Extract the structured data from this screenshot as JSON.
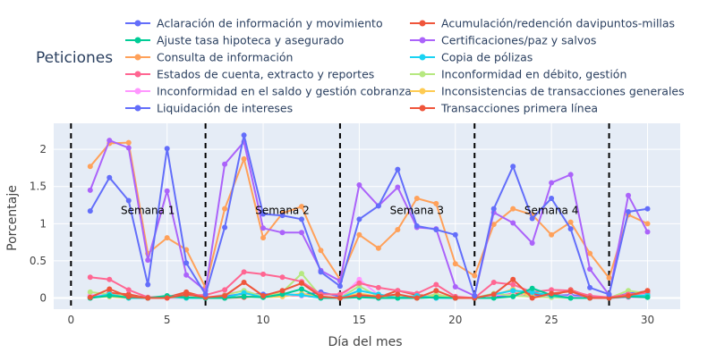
{
  "chart_data": {
    "type": "line",
    "title": "Peticiones",
    "xlabel": "Día del mes",
    "ylabel": "Porcentaje",
    "xlim": [
      -0.9,
      31.7
    ],
    "ylim": [
      -0.15,
      2.35
    ],
    "xticks": [
      0,
      5,
      10,
      15,
      20,
      25,
      30
    ],
    "yticks": [
      0,
      0.5,
      1,
      1.5,
      2
    ],
    "xtick_labels": [
      "0",
      "5",
      "10",
      "15",
      "20",
      "25",
      "30"
    ],
    "ytick_labels": [
      "0",
      "0.5",
      "1",
      "1.5",
      "2"
    ],
    "grid": true,
    "legend_position": "top",
    "week_lines": [
      0,
      7,
      14,
      21,
      28
    ],
    "annotations": [
      {
        "text": "Semana 1",
        "x": 4,
        "y": 1.18
      },
      {
        "text": "Semana 2",
        "x": 11,
        "y": 1.18
      },
      {
        "text": "Semana 3",
        "x": 18,
        "y": 1.18
      },
      {
        "text": "Semana 4",
        "x": 25,
        "y": 1.18
      }
    ],
    "x": [
      1,
      2,
      3,
      4,
      5,
      6,
      7,
      8,
      9,
      10,
      11,
      12,
      13,
      14,
      15,
      16,
      17,
      18,
      19,
      20,
      21,
      22,
      23,
      24,
      25,
      26,
      27,
      28,
      29,
      30
    ],
    "series": [
      {
        "name": "Aclaración de información y movimiento",
        "color": "#636efa",
        "values": [
          1.17,
          1.62,
          1.31,
          0.18,
          2.01,
          0.47,
          0.05,
          0.95,
          2.19,
          1.13,
          1.11,
          1.06,
          0.35,
          0.16,
          1.06,
          1.24,
          1.73,
          0.97,
          0.92,
          0.85,
          0.03,
          1.2,
          1.77,
          1.07,
          1.34,
          0.93,
          0.14,
          0.05,
          1.16,
          1.2
        ]
      },
      {
        "name": "Acumulación/redención davipuntos-millas",
        "color": "#EF553B",
        "values": [
          0.01,
          0.12,
          0.02,
          0,
          0,
          0.05,
          0.01,
          0.03,
          0.21,
          0.03,
          0.1,
          0.2,
          0.02,
          0,
          0.04,
          0.02,
          0.05,
          0,
          0.1,
          0,
          0,
          0.05,
          0.25,
          0,
          0.06,
          0.09,
          0,
          0,
          0.03,
          0.1
        ]
      },
      {
        "name": "Ajuste tasa hipoteca y asegurado",
        "color": "#00cc96",
        "values": [
          0,
          0.03,
          0.01,
          0,
          0.03,
          0.01,
          0,
          0,
          0.02,
          0.01,
          0.05,
          0.12,
          0,
          0,
          0.01,
          0,
          0,
          0,
          0.01,
          0,
          0,
          0,
          0.02,
          0.13,
          0.04,
          0,
          0,
          0,
          0.02,
          0.01
        ]
      },
      {
        "name": "Certificaciones/paz y salvos",
        "color": "#ab63fa",
        "values": [
          1.45,
          2.12,
          2.02,
          0.51,
          1.44,
          0.31,
          0.1,
          1.8,
          2.1,
          0.94,
          0.88,
          0.88,
          0.37,
          0.23,
          1.52,
          1.24,
          1.49,
          0.95,
          0.93,
          0.15,
          0.03,
          1.15,
          1.01,
          0.74,
          1.55,
          1.66,
          0.39,
          0.04,
          1.38,
          0.89
        ]
      },
      {
        "name": "Consulta de información",
        "color": "#FFA15A",
        "values": [
          1.77,
          2.08,
          2.09,
          0.6,
          0.81,
          0.65,
          0.14,
          1.2,
          1.87,
          0.81,
          1.14,
          1.23,
          0.64,
          0.25,
          0.85,
          0.67,
          0.92,
          1.34,
          1.27,
          0.46,
          0.3,
          0.99,
          1.2,
          1.12,
          0.85,
          1.02,
          0.6,
          0.27,
          1.12,
          1.0
        ]
      },
      {
        "name": "Copia de pólizas",
        "color": "#19d3f3",
        "values": [
          0,
          0.05,
          0,
          0,
          0.02,
          0,
          0,
          0,
          0.07,
          0.01,
          0.05,
          0.04,
          0,
          0,
          0.1,
          0.05,
          0,
          0.03,
          0,
          0,
          0,
          0.05,
          0.1,
          0.08,
          0.03,
          0,
          0,
          0,
          0.02,
          0.04
        ]
      },
      {
        "name": "Estados de cuenta, extracto y reportes",
        "color": "#FF6692",
        "values": [
          0.28,
          0.25,
          0.11,
          0.01,
          0.02,
          0.04,
          0.04,
          0.11,
          0.35,
          0.32,
          0.28,
          0.22,
          0.05,
          0.05,
          0.2,
          0.14,
          0.1,
          0.06,
          0.18,
          0.02,
          0,
          0.21,
          0.18,
          0.08,
          0.11,
          0.1,
          0.03,
          0.01,
          0.05,
          0.07
        ]
      },
      {
        "name": "Inconformidad en débito, gestión",
        "color": "#B6E880",
        "values": [
          0.08,
          0.05,
          0.02,
          0,
          0.01,
          0,
          0,
          0.04,
          0.1,
          0.02,
          0.08,
          0.33,
          0.02,
          0,
          0.16,
          0.02,
          0.03,
          0,
          0.05,
          0,
          0,
          0.06,
          0.03,
          0.02,
          0.01,
          0,
          0,
          0,
          0.1,
          0.06
        ]
      },
      {
        "name": "Inconformidad en el saldo y gestión cobranza",
        "color": "#FF97FF",
        "values": [
          0.04,
          0.05,
          0.01,
          0,
          0,
          0,
          0,
          0.05,
          0.1,
          0.02,
          0.05,
          0.03,
          0.01,
          0,
          0.25,
          0.04,
          0.02,
          0.01,
          0.05,
          0,
          0,
          0.04,
          0.05,
          0.01,
          0.03,
          0.02,
          0,
          0,
          0.01,
          0.01
        ]
      },
      {
        "name": "Inconsistencias de transacciones generales",
        "color": "#FECB52",
        "values": [
          0.01,
          0.02,
          0,
          0,
          0.01,
          0,
          0,
          0,
          0.02,
          0.01,
          0.02,
          0.06,
          0.01,
          0,
          0.06,
          0.02,
          0.01,
          0,
          0.02,
          0,
          0,
          0.03,
          0.12,
          0.01,
          0.02,
          0.01,
          0,
          0,
          0.01,
          0.02
        ]
      },
      {
        "name": "Liquidación de intereses",
        "color": "#636efa",
        "values": [
          0.02,
          0.03,
          0.02,
          0,
          0.02,
          0,
          0,
          0.02,
          0.06,
          0.05,
          0.05,
          0.04,
          0.08,
          0.02,
          0.02,
          0,
          0.02,
          0.02,
          0,
          0,
          0,
          0.02,
          0.03,
          0.03,
          0.03,
          0.04,
          0.02,
          0,
          0.06,
          0.09
        ]
      },
      {
        "name": "Transacciones primera línea",
        "color": "#EF553B",
        "values": [
          0,
          0.07,
          0.05,
          0,
          0.01,
          0.08,
          0.01,
          0,
          0.01,
          0.03,
          0.04,
          0.03,
          0.01,
          0,
          0.02,
          0.01,
          0.1,
          0.04,
          0.03,
          0,
          0,
          0.02,
          0.06,
          0.06,
          0.03,
          0.11,
          0.02,
          0,
          0.04,
          0.03
        ]
      }
    ]
  }
}
